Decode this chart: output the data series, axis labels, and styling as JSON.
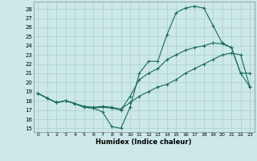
{
  "background_color": "#cce8e8",
  "grid_color": "#aacfcf",
  "line_color": "#1a6b5a",
  "xlim": [
    -0.5,
    23.5
  ],
  "ylim": [
    14.6,
    28.8
  ],
  "yticks": [
    15,
    16,
    17,
    18,
    19,
    20,
    21,
    22,
    23,
    24,
    25,
    26,
    27,
    28
  ],
  "xticks": [
    0,
    1,
    2,
    3,
    4,
    5,
    6,
    7,
    8,
    9,
    10,
    11,
    12,
    13,
    14,
    15,
    16,
    17,
    18,
    19,
    20,
    21,
    22,
    23
  ],
  "xlabel": "Humidex (Indice chaleur)",
  "line1_x": [
    0,
    1,
    2,
    3,
    4,
    5,
    6,
    7,
    8,
    9,
    10,
    11,
    12,
    13,
    14,
    15,
    16,
    17,
    18,
    19,
    20,
    21,
    22,
    23
  ],
  "line1_y": [
    18.8,
    18.3,
    17.8,
    18.0,
    17.7,
    17.3,
    17.2,
    16.8,
    15.2,
    15.0,
    17.3,
    21.0,
    22.3,
    22.3,
    25.2,
    27.6,
    28.1,
    28.3,
    28.1,
    26.2,
    24.3,
    23.8,
    21.0,
    19.5
  ],
  "line2_x": [
    0,
    1,
    2,
    3,
    4,
    5,
    6,
    7,
    8,
    9,
    10,
    11,
    12,
    13,
    14,
    15,
    16,
    17,
    18,
    19,
    20,
    21,
    22,
    23
  ],
  "line2_y": [
    18.8,
    18.3,
    17.8,
    18.0,
    17.7,
    17.3,
    17.2,
    17.3,
    17.2,
    17.0,
    18.5,
    20.3,
    21.0,
    21.5,
    22.5,
    23.0,
    23.5,
    23.8,
    24.0,
    24.3,
    24.2,
    23.8,
    21.0,
    21.0
  ],
  "line3_x": [
    0,
    1,
    2,
    3,
    4,
    5,
    6,
    7,
    8,
    9,
    10,
    11,
    12,
    13,
    14,
    15,
    16,
    17,
    18,
    19,
    20,
    21,
    22,
    23
  ],
  "line3_y": [
    18.8,
    18.3,
    17.8,
    18.0,
    17.7,
    17.4,
    17.3,
    17.4,
    17.3,
    17.1,
    17.8,
    18.5,
    19.0,
    19.5,
    19.8,
    20.3,
    21.0,
    21.5,
    22.0,
    22.5,
    23.0,
    23.2,
    23.0,
    19.5
  ]
}
